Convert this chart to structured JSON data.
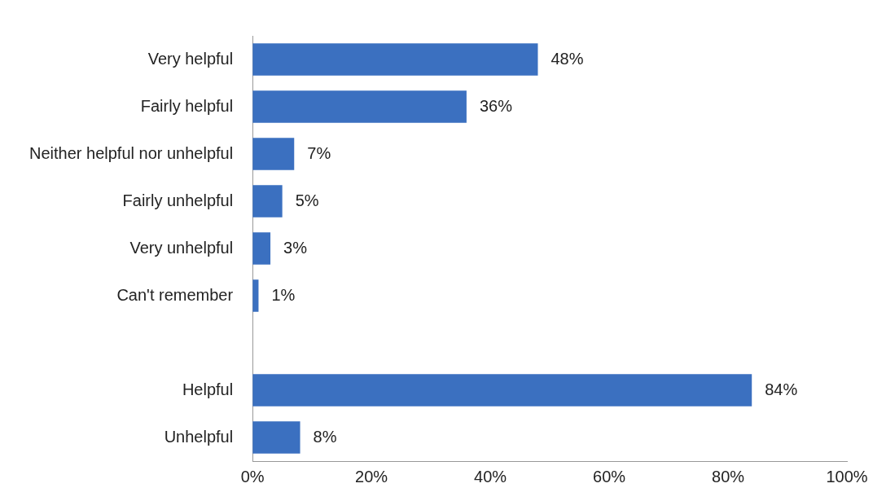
{
  "chart_data": {
    "type": "bar",
    "orientation": "horizontal",
    "categories": [
      "Very helpful",
      "Fairly helpful",
      "Neither helpful nor unhelpful",
      "Fairly unhelpful",
      "Very unhelpful",
      "Can't remember",
      null,
      "Helpful",
      "Unhelpful"
    ],
    "values": [
      48,
      36,
      7,
      5,
      3,
      1,
      null,
      84,
      8
    ],
    "value_labels": [
      "48%",
      "36%",
      "7%",
      "5%",
      "3%",
      "1%",
      null,
      "84%",
      "8%"
    ],
    "color": "#3b70c0",
    "xlim": [
      0,
      100
    ],
    "xticks": [
      {
        "value": 0,
        "label": "0%"
      },
      {
        "value": 20,
        "label": "20%"
      },
      {
        "value": 40,
        "label": "40%"
      },
      {
        "value": 60,
        "label": "60%"
      },
      {
        "value": 80,
        "label": "80%"
      },
      {
        "value": 100,
        "label": "100%"
      }
    ],
    "grid": false,
    "legend": false
  }
}
